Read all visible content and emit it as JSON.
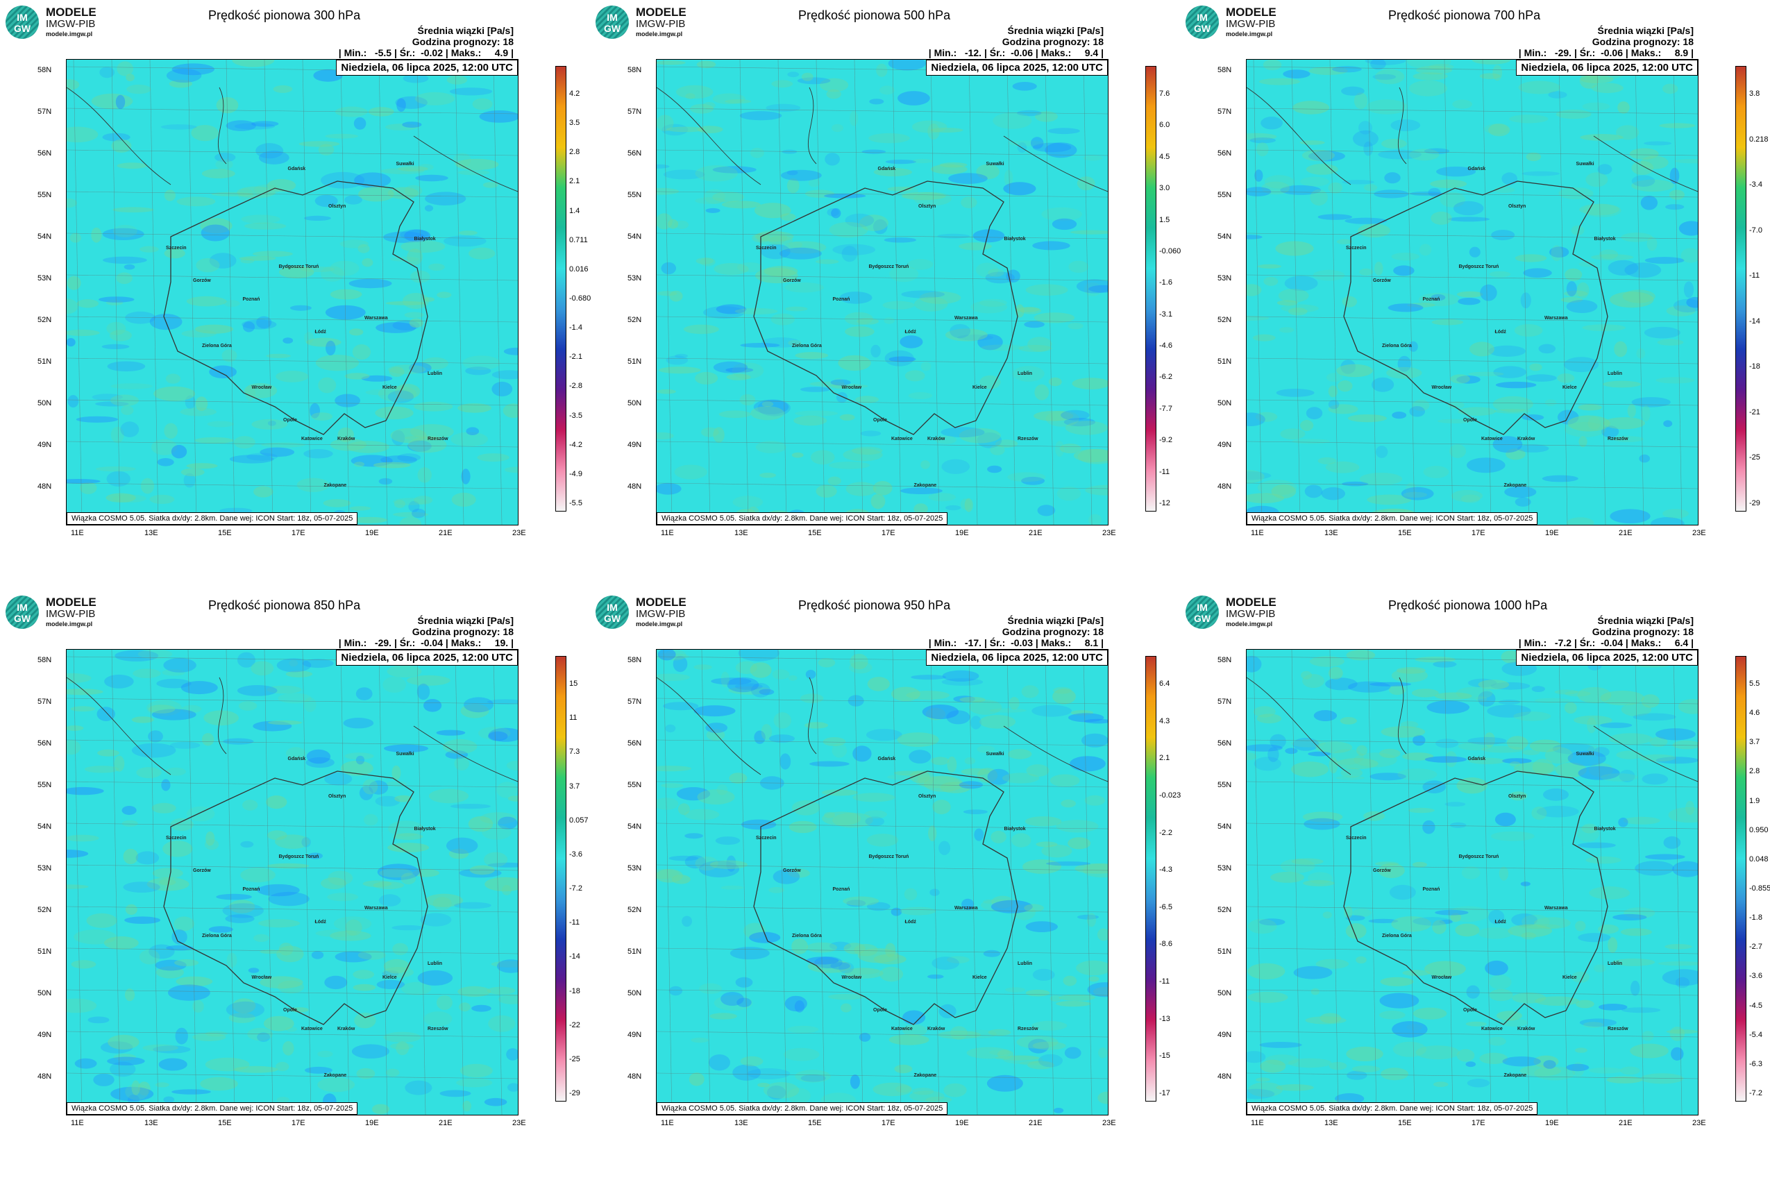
{
  "logo": {
    "line1": "IM",
    "line2": "GW",
    "name": "MODELE",
    "sub": "IMGW-PIB",
    "url": "modele.imgw.pl"
  },
  "common": {
    "subtitle": "Średnia wiązki [Pa/s]",
    "forecast": "Godzina prognozy: 18",
    "date": "Niedziela, 06 lipca 2025, 12:00 UTC",
    "footer": "Wiązka COSMO 5.05. Siatka dx/dy: 2.8km. Dane wej: ICON Start: 18z, 05-07-2025",
    "lat_labels": [
      "58N",
      "57N",
      "56N",
      "55N",
      "54N",
      "53N",
      "52N",
      "51N",
      "50N",
      "49N",
      "48N"
    ],
    "lon_labels": [
      "11E",
      "13E",
      "15E",
      "17E",
      "19E",
      "21E",
      "23E"
    ],
    "colors": {
      "field": "#33e0e0",
      "green": "#6ed89a",
      "blue": "#1e90ff"
    }
  },
  "cities": [
    "Gdańsk",
    "Olsztyn",
    "Suwałki",
    "Szczecin",
    "Białystok",
    "Bydgoszcz Toruń",
    "Gorzów",
    "Poznań",
    "Warszawa",
    "Zielona Góra",
    "Łódź",
    "Lublin",
    "Wrocław",
    "Kielce",
    "Opole",
    "Katowice",
    "Kraków",
    "Rzeszów",
    "Zakopane"
  ],
  "panels": [
    {
      "title": "Prędkość pionowa 300 hPa",
      "stats": "| Min.:   -5.5 | Śr.:  -0.02 | Maks.:     4.9 |",
      "ticks": [
        "4.2",
        "3.5",
        "2.8",
        "2.1",
        "1.4",
        "0.711",
        "0.016",
        "-0.680",
        "-1.4",
        "-2.1",
        "-2.8",
        "-3.5",
        "-4.2",
        "-4.9",
        "-5.5"
      ]
    },
    {
      "title": "Prędkość pionowa 500 hPa",
      "stats": "| Min.:   -12. | Śr.:  -0.06 | Maks.:     9.4 |",
      "ticks": [
        "7.6",
        "6.0",
        "4.5",
        "3.0",
        "1.5",
        "-0.060",
        "-1.6",
        "-3.1",
        "-4.6",
        "-6.2",
        "-7.7",
        "-9.2",
        "-11",
        "-12"
      ]
    },
    {
      "title": "Prędkość pionowa 700 hPa",
      "stats": "| Min.:   -29. | Śr.:  -0.06 | Maks.:     8.9 |",
      "ticks": [
        "3.8",
        "0.218",
        "-3.4",
        "-7.0",
        "-11",
        "-14",
        "-18",
        "-21",
        "-25",
        "-29"
      ]
    },
    {
      "title": "Prędkość pionowa 850 hPa",
      "stats": "| Min.:   -29. | Śr.:  -0.04 | Maks.:     19. |",
      "ticks": [
        "15",
        "11",
        "7.3",
        "3.7",
        "0.057",
        "-3.6",
        "-7.2",
        "-11",
        "-14",
        "-18",
        "-22",
        "-25",
        "-29"
      ]
    },
    {
      "title": "Prędkość pionowa 950 hPa",
      "stats": "| Min.:   -17. | Śr.:  -0.03 | Maks.:     8.1 |",
      "ticks": [
        "6.4",
        "4.3",
        "2.1",
        "-0.023",
        "-2.2",
        "-4.3",
        "-6.5",
        "-8.6",
        "-11",
        "-13",
        "-15",
        "-17"
      ]
    },
    {
      "title": "Prędkość pionowa 1000 hPa",
      "stats": "| Min.:   -7.2 | Śr.:  -0.04 | Maks.:     6.4 |",
      "ticks": [
        "5.5",
        "4.6",
        "3.7",
        "2.8",
        "1.9",
        "0.950",
        "0.048",
        "-0.855",
        "-1.8",
        "-2.7",
        "-3.6",
        "-4.5",
        "-5.4",
        "-6.3",
        "-7.2"
      ]
    }
  ]
}
